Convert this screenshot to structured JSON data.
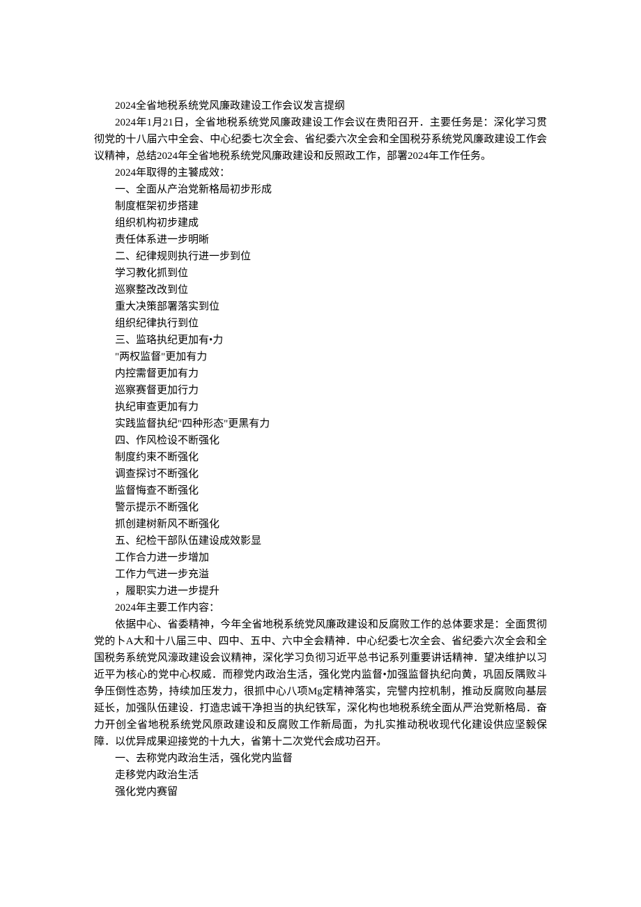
{
  "title": "2024全省地税系统党风廉政建设工作会议发言提纲",
  "intro": "2024年1月21日，全省地税系统党风廉政建设工作会议在贵阳召开．主要任务是：深化学习贯彻党的十八届六中全会、中心纪委七次全会、省纪委六次全会和全国税芬系统党风廉政建设工作会议精神，总结2024年全省地税系统党风廉政建设和反照政工作，部署2024年工作任务。",
  "section_a_header": "2024年取得的主饕成效：",
  "s1_title": "一、全面从产治党新格局初步形成",
  "s1_i1": "制度框架初步搭建",
  "s1_i2": "组织机构初步建成",
  "s1_i3": "责任体系进一步明晰",
  "s2_title": "二、纪律规则执行进一步到位",
  "s2_i1": "学习教化抓到位",
  "s2_i2": "巡察整改改到位",
  "s2_i3": "重大决策部署落实到位",
  "s2_i4": "组织纪律执行到位",
  "s3_title": "三、监珞执纪更加有•力",
  "s3_i1": "\"两权监督\"更加有力",
  "s3_i2": "内控需督更加有力",
  "s3_i3": "巡察赛督更加行力",
  "s3_i4": "执纪审查更加有力",
  "s3_i5": "实践监督执纪\"四种形态\"更黑有力",
  "s4_title": "四、作风检设不断强化",
  "s4_i1": "制度约束不断强化",
  "s4_i2": "调查探讨不断强化",
  "s4_i3": "监督悔查不断强化",
  "s4_i4": "警示提示不断强化",
  "s4_i5": "抓创建树新风不断强化",
  "s5_title": "五、纪检干部队伍建设成效影显",
  "s5_i1": "工作合力进一步增加",
  "s5_i2": "工作力气进一步充溢",
  "s5_i3": "，履职实力进一步提升",
  "section_b_header": "2024年主要工作内容：",
  "main_paragraph": "依据中心、省委精神，今年全省地税系统党风廉政建设和反腐败工作的总体要求是：全面贯彻党的卜A大和十八届三中、四中、五中、六中全会精神．中心纪委七次全会、省纪委六次全会和全国税务系统党风濠政建设会议精神，深化学习负彻习近平总书记系列重要讲话精神．望决维护以习近平为核心的党中心权威．而穆党内政治生活，强化党内监督•加强监督执纪向黄，巩固反隅败斗争压倒性态势，持续加压发力，很抓中心八项Mg定精神落实，完譬内控机制，推动反腐败向基层延长，加强队伍建设．打造忠诚干净担当的执纪铁军，深化构也地税系统全面从严治党新格局．奋力开创全省地税系统党风原政建设和反腐败工作新局面，为扎实推动税收现代化建设供应坚毅保障．以优异成果迎接党的十九大，省第十二次党代会成功召开。",
  "b1_title": "一、去称党内政治生活，强化党内监督",
  "b1_i1": "走移党内政治生活",
  "b1_i2": "强化党内赛留"
}
